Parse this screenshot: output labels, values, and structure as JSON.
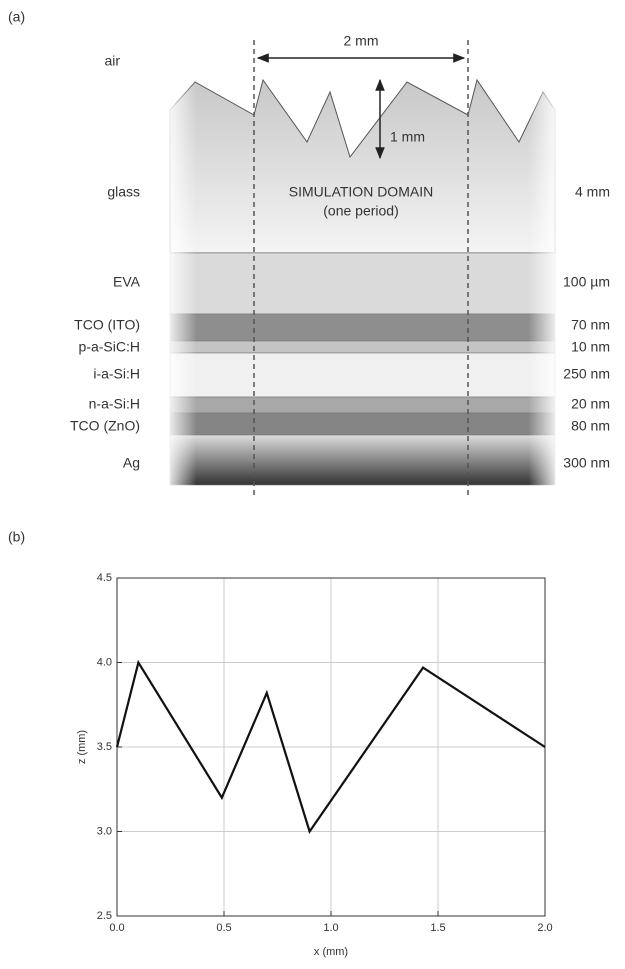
{
  "labels": {
    "a": "(a)",
    "b": "(b)"
  },
  "diagram": {
    "top_medium": "air",
    "period": "2 mm",
    "height": "1 mm",
    "domain": "SIMULATION DOMAIN",
    "domain_note": "(one period)",
    "layers": [
      {
        "name": "glass",
        "thickness": "4 mm"
      },
      {
        "name": "EVA",
        "thickness": "100 µm"
      },
      {
        "name": "TCO (ITO)",
        "thickness": "70 nm"
      },
      {
        "name": "p-a-SiC:H",
        "thickness": "10 nm"
      },
      {
        "name": "i-a-Si:H",
        "thickness": "250 nm"
      },
      {
        "name": "n-a-Si:H",
        "thickness": "20 nm"
      },
      {
        "name": "TCO (ZnO)",
        "thickness": "80 nm"
      },
      {
        "name": "Ag",
        "thickness": "300 nm"
      }
    ]
  },
  "chart_data": {
    "type": "line",
    "xlabel": "x (mm)",
    "ylabel": "z (mm)",
    "x": [
      0,
      0.1,
      0.49,
      0.7,
      0.9,
      1.43,
      2.0
    ],
    "values": [
      3.5,
      4.0,
      3.2,
      3.82,
      3.0,
      3.97,
      3.5
    ],
    "color": "#111111",
    "xlim": [
      0,
      2
    ],
    "ylim": [
      2.5,
      4.5
    ],
    "xticks": [
      {
        "value": 0,
        "label": "0.0"
      },
      0.5,
      {
        "value": 1,
        "label": "1.0"
      },
      1.5,
      {
        "value": 2,
        "label": "2.0"
      }
    ],
    "yticks": [
      2.5,
      {
        "value": 3,
        "label": "3.0"
      },
      3.5,
      {
        "value": 4,
        "label": "4.0"
      },
      4.5
    ],
    "grid": true
  }
}
